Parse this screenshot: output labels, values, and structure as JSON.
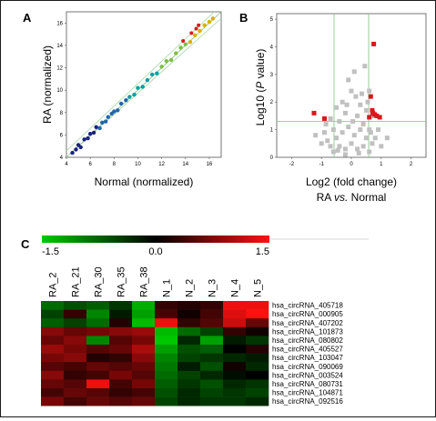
{
  "panels": {
    "a": "A",
    "b": "B",
    "c": "C"
  },
  "chart_data": [
    {
      "type": "scatter",
      "panel": "A",
      "xlabel": "Normal (normalized)",
      "ylabel": "RA (normalized)",
      "xlim": [
        4,
        17
      ],
      "ylim": [
        4,
        17
      ],
      "xticks": [
        "4",
        "6",
        "8",
        "10",
        "12",
        "14",
        "16"
      ],
      "yticks": [
        "4",
        "6",
        "8",
        "10",
        "12",
        "14",
        "16"
      ],
      "guide_lines": [
        "y = x",
        "y = x + 0.58",
        "y = x - 0.58"
      ],
      "color_scale": [
        "#1a237e",
        "#2166ac",
        "#00a0a0",
        "#7fbf3f",
        "#d7b000",
        "#d73027"
      ],
      "series": [
        {
          "name": "",
          "points": [
            [
              4.5,
              4.4
            ],
            [
              4.8,
              4.7
            ],
            [
              5.0,
              5.1
            ],
            [
              5.2,
              4.9
            ],
            [
              5.5,
              5.6
            ],
            [
              5.8,
              5.7
            ],
            [
              6.0,
              6.1
            ],
            [
              6.3,
              6.2
            ],
            [
              6.5,
              6.7
            ],
            [
              6.8,
              6.6
            ],
            [
              7.0,
              7.1
            ],
            [
              7.3,
              7.2
            ],
            [
              7.5,
              7.6
            ],
            [
              7.8,
              7.9
            ],
            [
              8.0,
              8.1
            ],
            [
              8.3,
              8.2
            ],
            [
              8.6,
              8.8
            ],
            [
              9.0,
              9.1
            ],
            [
              9.3,
              9.4
            ],
            [
              9.7,
              9.6
            ],
            [
              10.0,
              10.2
            ],
            [
              10.4,
              10.3
            ],
            [
              10.8,
              10.9
            ],
            [
              11.2,
              11.4
            ],
            [
              11.6,
              11.5
            ],
            [
              12.0,
              12.1
            ],
            [
              12.4,
              12.6
            ],
            [
              12.8,
              12.7
            ],
            [
              13.2,
              13.3
            ],
            [
              13.6,
              13.8
            ],
            [
              14.0,
              14.1
            ],
            [
              14.4,
              14.3
            ],
            [
              14.8,
              14.9
            ],
            [
              15.2,
              15.3
            ],
            [
              15.6,
              15.8
            ],
            [
              16.0,
              16.1
            ],
            [
              16.3,
              16.4
            ]
          ]
        }
      ],
      "highlighted_points": [
        [
          13.8,
          14.4
        ],
        [
          14.5,
          15.1
        ],
        [
          14.9,
          15.5
        ],
        [
          15.1,
          15.8
        ]
      ]
    },
    {
      "type": "scatter",
      "panel": "B",
      "xlabel": "Log2 (fold change)",
      "xlabel_line2_prefix": "RA ",
      "xlabel_line2_italic": "vs.",
      "xlabel_line2_suffix": " Normal",
      "ylabel_prefix": "Log10 (",
      "ylabel_italic": "P",
      "ylabel_suffix": " value)",
      "xlim": [
        -2.5,
        2.5
      ],
      "ylim": [
        0,
        5.2
      ],
      "xticks": [
        "-2",
        "-1",
        "0",
        "1",
        "2"
      ],
      "yticks": [
        "0",
        "1",
        "2",
        "3",
        "4",
        "5"
      ],
      "threshold_lines": {
        "x": [
          -0.58,
          0.58
        ],
        "y": [
          1.3
        ]
      },
      "colors": {
        "not_significant": "#c0c0c0",
        "significant": "#d7191c",
        "threshold": "#80c080"
      },
      "gray_points": [
        [
          -0.6,
          0.2
        ],
        [
          -0.4,
          0.4
        ],
        [
          -0.2,
          0.3
        ],
        [
          0.0,
          0.5
        ],
        [
          0.2,
          0.3
        ],
        [
          0.4,
          0.4
        ],
        [
          0.6,
          0.2
        ],
        [
          -0.5,
          0.7
        ],
        [
          -0.3,
          0.9
        ],
        [
          -0.1,
          1.1
        ],
        [
          0.1,
          0.8
        ],
        [
          0.3,
          1.0
        ],
        [
          0.5,
          0.7
        ],
        [
          -0.7,
          0.4
        ],
        [
          0.7,
          0.5
        ],
        [
          -0.4,
          1.3
        ],
        [
          0.4,
          1.2
        ],
        [
          -0.2,
          1.6
        ],
        [
          0.2,
          1.5
        ],
        [
          -0.6,
          1.0
        ],
        [
          0.6,
          1.0
        ],
        [
          -0.8,
          0.6
        ],
        [
          0.8,
          0.7
        ],
        [
          -0.3,
          2.0
        ],
        [
          0.3,
          1.9
        ],
        [
          0.0,
          2.4
        ],
        [
          -0.5,
          1.8
        ],
        [
          0.5,
          1.7
        ],
        [
          -0.9,
          0.9
        ],
        [
          0.9,
          1.0
        ],
        [
          -1.0,
          0.5
        ],
        [
          1.0,
          0.4
        ],
        [
          -0.1,
          2.8
        ],
        [
          0.1,
          3.1
        ],
        [
          0.45,
          3.3
        ],
        [
          0.6,
          2.4
        ],
        [
          -0.7,
          1.4
        ],
        [
          0.7,
          1.5
        ],
        [
          -1.2,
          0.8
        ],
        [
          1.2,
          0.7
        ],
        [
          -0.2,
          0.1
        ],
        [
          0.25,
          0.15
        ],
        [
          -0.45,
          0.25
        ],
        [
          0.65,
          0.9
        ],
        [
          -0.85,
          1.2
        ],
        [
          0.35,
          2.3
        ],
        [
          0.55,
          2.0
        ],
        [
          -0.15,
          1.9
        ],
        [
          0.15,
          2.2
        ],
        [
          0.05,
          1.3
        ]
      ],
      "red_points": [
        [
          0.75,
          4.1
        ],
        [
          0.65,
          2.2
        ],
        [
          0.7,
          1.7
        ],
        [
          0.72,
          1.6
        ],
        [
          0.78,
          1.55
        ],
        [
          0.6,
          1.45
        ],
        [
          0.85,
          1.5
        ],
        [
          -1.25,
          1.6
        ],
        [
          -0.9,
          1.4
        ],
        [
          0.95,
          1.45
        ]
      ]
    },
    {
      "type": "heatmap",
      "panel": "C",
      "scale": {
        "min": -1.5,
        "mid": 0.0,
        "max": 1.5,
        "labels": [
          "-1.5",
          "0.0",
          "1.5"
        ]
      },
      "colors": {
        "low": "#00c800",
        "mid": "#000000",
        "high": "#ff1010"
      },
      "columns": [
        "RA_2",
        "RA_21",
        "RA_30",
        "RA_35",
        "RA_38",
        "N_1",
        "N_2",
        "N_3",
        "N_4",
        "N_5"
      ],
      "rows": [
        "hsa_circRNA_405718",
        "hsa_circRNA_000905",
        "hsa_circRNA_407202",
        "hsa_circRNA_101873",
        "hsa_circRNA_080802",
        "hsa_circRNA_405527",
        "hsa_circRNA_103047",
        "hsa_circRNA_090069",
        "hsa_circRNA_003524",
        "hsa_circRNA_080731",
        "hsa_circRNA_104871",
        "hsa_circRNA_092516"
      ],
      "values": [
        [
          -0.8,
          -0.6,
          -0.7,
          -0.4,
          -1.3,
          0.3,
          0.2,
          0.3,
          1.4,
          1.4
        ],
        [
          -0.5,
          0.3,
          -1.0,
          -0.2,
          -1.2,
          0.4,
          0.1,
          0.4,
          1.3,
          1.5
        ],
        [
          -0.7,
          -0.5,
          -0.8,
          0.2,
          -1.4,
          1.4,
          0.3,
          0.5,
          1.2,
          0.6
        ],
        [
          0.8,
          0.6,
          0.7,
          0.8,
          0.9,
          -1.4,
          -0.8,
          -0.5,
          0.3,
          0.1
        ],
        [
          0.6,
          0.8,
          -1.0,
          0.5,
          0.7,
          -1.5,
          -0.3,
          -1.2,
          -0.2,
          -0.4
        ],
        [
          0.9,
          0.7,
          0.5,
          0.6,
          1.0,
          -1.2,
          -0.6,
          -0.7,
          0.0,
          0.2
        ],
        [
          0.7,
          0.8,
          0.2,
          0.3,
          0.8,
          -1.0,
          -0.5,
          -0.4,
          -0.3,
          -0.2
        ],
        [
          0.5,
          0.4,
          0.6,
          0.5,
          0.6,
          -0.9,
          -0.2,
          -0.6,
          0.1,
          -0.3
        ],
        [
          0.8,
          0.3,
          0.4,
          0.7,
          0.5,
          -0.8,
          -0.5,
          -0.3,
          -0.1,
          0.0
        ],
        [
          0.6,
          0.5,
          1.4,
          0.4,
          0.7,
          -0.7,
          -0.4,
          -0.6,
          -0.3,
          -0.4
        ],
        [
          0.4,
          0.6,
          0.5,
          0.3,
          0.4,
          -0.6,
          -0.3,
          -0.5,
          -0.4,
          -0.5
        ],
        [
          0.7,
          0.4,
          0.6,
          0.5,
          0.6,
          -0.5,
          -0.3,
          -0.4,
          -0.4,
          -0.3
        ]
      ]
    }
  ]
}
